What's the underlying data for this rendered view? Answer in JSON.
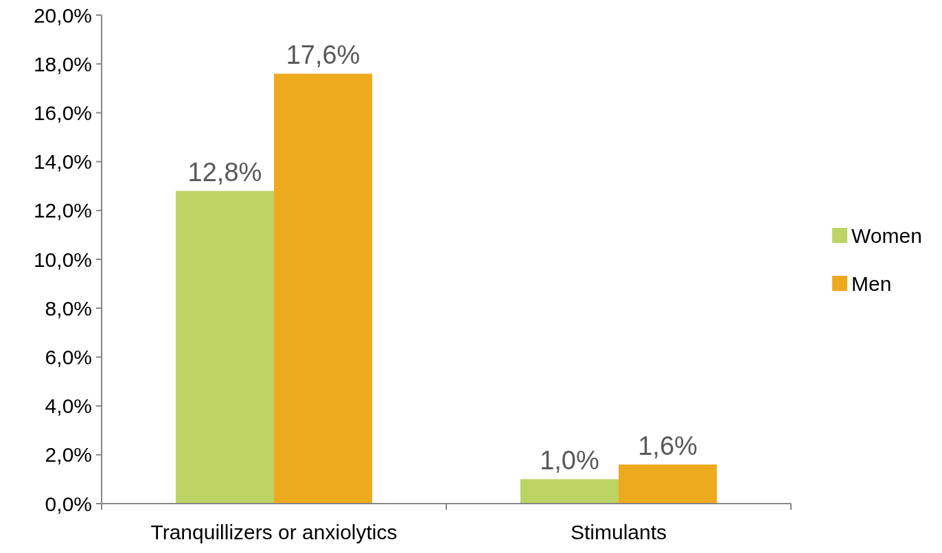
{
  "chart_data": {
    "type": "bar",
    "categories": [
      "Tranquillizers or anxiolytics",
      "Stimulants"
    ],
    "series": [
      {
        "name": "Women",
        "color": "#bcd464",
        "values": [
          12.8,
          1.0
        ],
        "value_labels": [
          "12,8%",
          "1,0%"
        ]
      },
      {
        "name": "Men",
        "color": "#eeaa1e",
        "values": [
          17.6,
          1.6
        ],
        "value_labels": [
          "17,6%",
          "1,6%"
        ]
      }
    ],
    "ylim": [
      0,
      20
    ],
    "yticks": [
      {
        "value": 0,
        "label": "0,0%"
      },
      {
        "value": 2,
        "label": "2,0%"
      },
      {
        "value": 4,
        "label": "4,0%"
      },
      {
        "value": 6,
        "label": "6,0%"
      },
      {
        "value": 8,
        "label": "8,0%"
      },
      {
        "value": 10,
        "label": "10,0%"
      },
      {
        "value": 12,
        "label": "12,0%"
      },
      {
        "value": 14,
        "label": "14,0%"
      },
      {
        "value": 16,
        "label": "16,0%"
      },
      {
        "value": 18,
        "label": "18,0%"
      },
      {
        "value": 20,
        "label": "20,0%"
      }
    ],
    "grid": false,
    "legend": "right"
  }
}
